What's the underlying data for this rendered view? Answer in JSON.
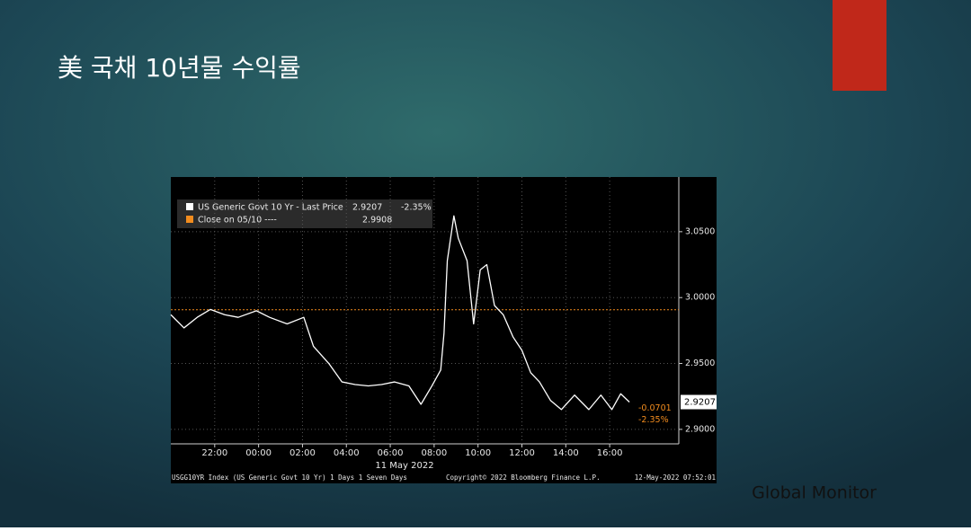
{
  "title": "美 국채 10년물 수익률",
  "watermark": "Global Monitor",
  "chart_data": {
    "type": "line",
    "last_price": 2.9207,
    "change": -0.0701,
    "change_pct": "-2.35%",
    "close_label": "Close on 05/10 ----",
    "close_value": 2.9908,
    "close_color": "#f28c1e",
    "x_label": "11 May 2022",
    "footer_left": "USGG10YR Index (US Generic Govt 10 Yr) 1 Days 1 Seven Days",
    "footer_mid": "Copyright© 2022 Bloomberg Finance L.P.",
    "footer_right": "12-May-2022 07:52:01",
    "grid": true,
    "x": [
      20,
      20.6,
      21.2,
      21.8,
      22.45,
      23.07,
      23.9,
      24.5,
      25.3,
      26.06,
      26.5,
      27.2,
      27.8,
      28.4,
      29.0,
      29.6,
      30.2,
      30.85,
      31.4,
      31.9,
      32.3,
      32.45,
      32.6,
      32.9,
      33.1,
      33.5,
      33.8,
      34.1,
      34.4,
      34.75,
      35.15,
      35.6,
      36.0,
      36.4,
      36.8,
      37.3,
      37.8,
      38.4,
      39.05,
      39.6,
      40.1,
      40.5,
      40.9
    ],
    "series": [
      {
        "name": "US Generic Govt 10 Yr - Last Price",
        "color": "#ffffff",
        "values": [
          2.987,
          2.977,
          2.985,
          2.991,
          2.987,
          2.985,
          2.99,
          2.985,
          2.98,
          2.985,
          2.963,
          2.95,
          2.936,
          2.934,
          2.933,
          2.934,
          2.936,
          2.933,
          2.919,
          2.933,
          2.945,
          2.973,
          3.028,
          3.062,
          3.045,
          3.028,
          2.98,
          3.021,
          3.025,
          2.994,
          2.987,
          2.97,
          2.96,
          2.943,
          2.936,
          2.922,
          2.915,
          2.926,
          2.915,
          2.926,
          2.915,
          2.927,
          2.9207
        ]
      }
    ],
    "xlim": [
      20,
      43.15
    ],
    "ylim": [
      2.889,
      3.0915
    ],
    "xticks": [
      {
        "value": 22,
        "label": "22:00"
      },
      {
        "value": 24,
        "label": "00:00"
      },
      {
        "value": 26,
        "label": "02:00"
      },
      {
        "value": 28,
        "label": "04:00"
      },
      {
        "value": 30,
        "label": "06:00"
      },
      {
        "value": 32,
        "label": "08:00"
      },
      {
        "value": 34,
        "label": "10:00"
      },
      {
        "value": 36,
        "label": "12:00"
      },
      {
        "value": 38,
        "label": "14:00"
      },
      {
        "value": 40,
        "label": "16:00"
      }
    ],
    "yticks": [
      {
        "value": 2.9,
        "label": "2.9000"
      },
      {
        "value": 2.95,
        "label": "2.9500"
      },
      {
        "value": 3.0,
        "label": "3.0000"
      },
      {
        "value": 3.05,
        "label": "3.0500"
      }
    ]
  }
}
